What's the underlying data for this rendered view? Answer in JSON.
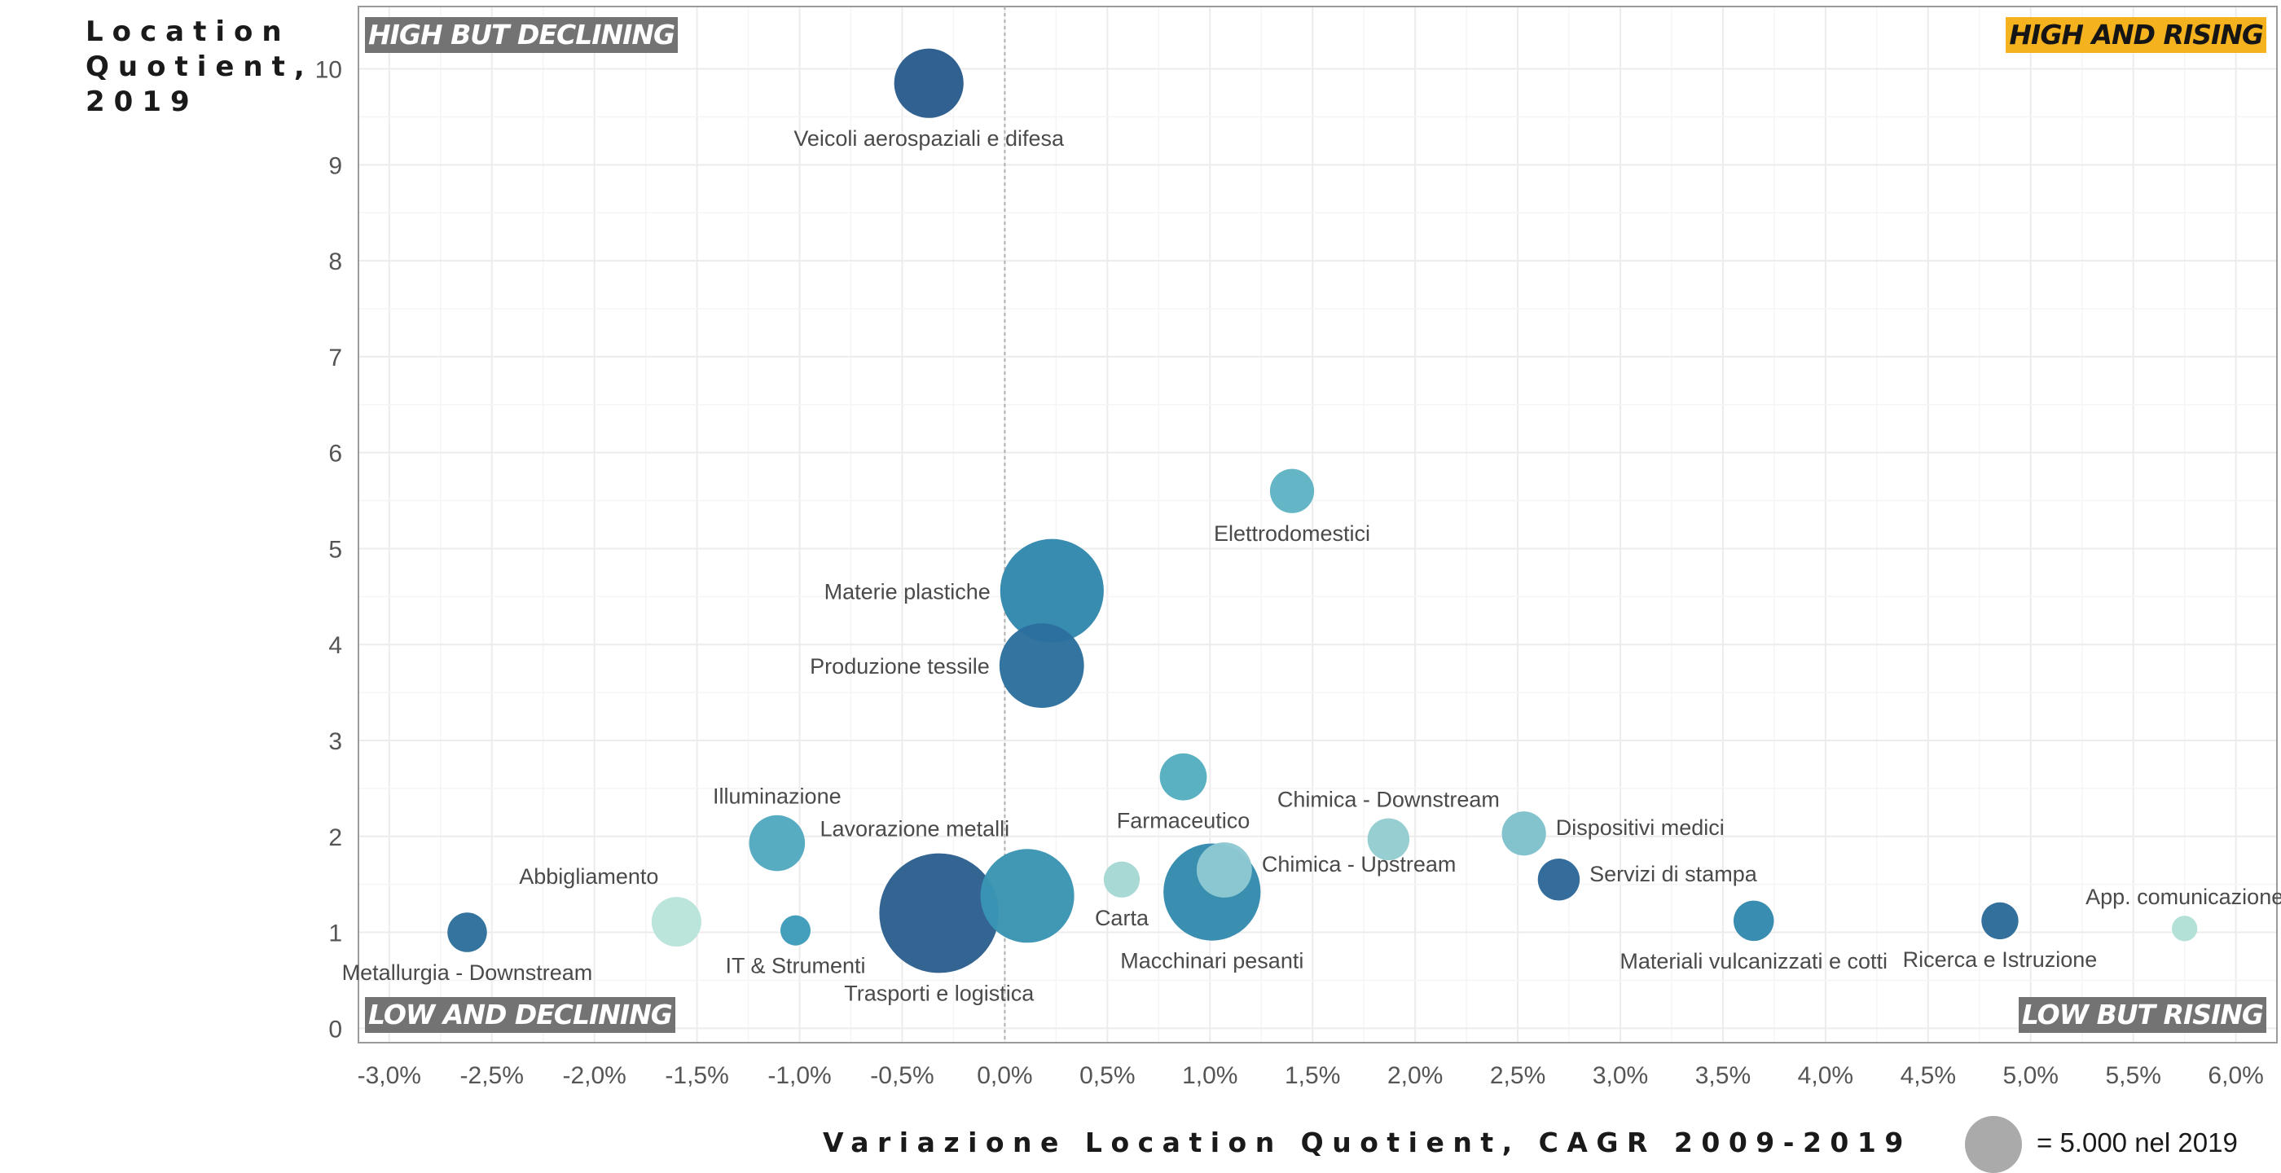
{
  "colors": {
    "grid": "#ececec",
    "axis_line": "#9a9a9a",
    "tick_text": "#555555",
    "label_text": "#4a4a4a",
    "zero_line": "#b0b0b0",
    "quadrant_box": "#737373",
    "quadrant_highlight": "#f4b31e",
    "legend_bubble": "#aaaaaa"
  },
  "y_axis_title": "Location\nQuotient,\n2019",
  "x_axis_title": "Variazione Location Quotient, CAGR 2009-2019",
  "size_legend": {
    "label": "= 5.000 nel 2019",
    "icon": "circle-icon"
  },
  "quadrants": {
    "top_left": "HIGH BUT DECLINING",
    "top_right": "HIGH AND RISING",
    "bottom_left": "LOW AND DECLINING",
    "bottom_right": "LOW BUT RISING"
  },
  "chart_data": {
    "type": "scatter",
    "subtype": "bubble",
    "title": "",
    "xlabel": "Variazione Location Quotient, CAGR 2009-2019",
    "ylabel": "Location Quotient, 2019",
    "xlim": [
      -3.15,
      6.2
    ],
    "ylim": [
      -0.15,
      10.65
    ],
    "x_ticks": [
      -3.0,
      -2.5,
      -2.0,
      -1.5,
      -1.0,
      -0.5,
      0.0,
      0.5,
      1.0,
      1.5,
      2.0,
      2.5,
      3.0,
      3.5,
      4.0,
      4.5,
      5.0,
      5.5,
      6.0
    ],
    "x_tick_labels": [
      "-3,0%",
      "-2,5%",
      "-2,0%",
      "-1,5%",
      "-1,0%",
      "-0,5%",
      "0,0%",
      "0,5%",
      "1,0%",
      "1,5%",
      "2,0%",
      "2,5%",
      "3,0%",
      "3,5%",
      "4,0%",
      "4,5%",
      "5,0%",
      "5,5%",
      "6,0%"
    ],
    "y_ticks": [
      0,
      1,
      2,
      3,
      4,
      5,
      6,
      7,
      8,
      9,
      10
    ],
    "y_tick_labels": [
      "0",
      "1",
      "2",
      "3",
      "4",
      "5",
      "6",
      "7",
      "8",
      "9",
      "10"
    ],
    "grid": true,
    "reference_line_x": 0,
    "size_unit_employment": 5000,
    "points": [
      {
        "name": "Veicoli aerospaziali e difesa",
        "x": -0.37,
        "y": 9.85,
        "size": 7400,
        "color": "#2a5c8c",
        "label_pos": "below"
      },
      {
        "name": "Elettrodomestici",
        "x": 1.4,
        "y": 5.6,
        "size": 3000,
        "color": "#5fb3c3",
        "label_pos": "below"
      },
      {
        "name": "Materie plastiche",
        "x": 0.23,
        "y": 4.56,
        "size": 16500,
        "color": "#3288ad",
        "label_pos": "left"
      },
      {
        "name": "Produzione tessile",
        "x": 0.18,
        "y": 3.78,
        "size": 11000,
        "color": "#2c6f9e",
        "label_pos": "left"
      },
      {
        "name": "Farmaceutico",
        "x": 0.87,
        "y": 2.62,
        "size": 3400,
        "color": "#55aec0",
        "label_pos": "below"
      },
      {
        "name": "Illuminazione",
        "x": -1.11,
        "y": 1.93,
        "size": 4800,
        "color": "#52a9bf",
        "label_pos": "above"
      },
      {
        "name": "Chimica - Downstream",
        "x": 1.87,
        "y": 1.97,
        "size": 2700,
        "color": "#94ccd0",
        "label_pos": "above"
      },
      {
        "name": "Dispositivi medici",
        "x": 2.53,
        "y": 2.03,
        "size": 3000,
        "color": "#7fc1cc",
        "label_pos": "right"
      },
      {
        "name": "Lavorazione metalli",
        "x": 0.11,
        "y": 1.38,
        "size": 13500,
        "color": "#3a95b3",
        "label_pos": "above-left"
      },
      {
        "name": "Carta",
        "x": 0.57,
        "y": 1.55,
        "size": 2000,
        "color": "#a5d8d4",
        "label_pos": "below"
      },
      {
        "name": "Chimica - Upstream",
        "x": 1.07,
        "y": 1.65,
        "size": 4700,
        "color": "#8dc8d1",
        "label_pos": "right"
      },
      {
        "name": "Macchinari pesanti",
        "x": 1.01,
        "y": 1.42,
        "size": 14500,
        "color": "#348bae",
        "label_pos": "below"
      },
      {
        "name": "Servizi di stampa",
        "x": 2.7,
        "y": 1.55,
        "size": 2700,
        "color": "#2d6898",
        "label_pos": "right"
      },
      {
        "name": "Abbigliamento",
        "x": -1.6,
        "y": 1.11,
        "size": 3800,
        "color": "#b9e3d9",
        "label_pos": "above-left"
      },
      {
        "name": "IT & Strumenti",
        "x": -1.02,
        "y": 1.02,
        "size": 1400,
        "color": "#3d9cba",
        "label_pos": "below"
      },
      {
        "name": "Trasporti e logistica",
        "x": -0.32,
        "y": 1.2,
        "size": 22000,
        "color": "#2d5f8e",
        "label_pos": "below"
      },
      {
        "name": "Metallurgia - Downstream",
        "x": -2.62,
        "y": 1.0,
        "size": 2400,
        "color": "#2d6f9b",
        "label_pos": "below"
      },
      {
        "name": "Materiali vulcanizzati e cotti",
        "x": 3.65,
        "y": 1.12,
        "size": 2500,
        "color": "#3389ad",
        "label_pos": "below"
      },
      {
        "name": "Ricerca e Istruzione",
        "x": 4.85,
        "y": 1.12,
        "size": 2100,
        "color": "#2d6b99",
        "label_pos": "below"
      },
      {
        "name": "App. comunicazione",
        "x": 5.75,
        "y": 1.04,
        "size": 1000,
        "color": "#b1e0d7",
        "label_pos": "above"
      }
    ]
  }
}
